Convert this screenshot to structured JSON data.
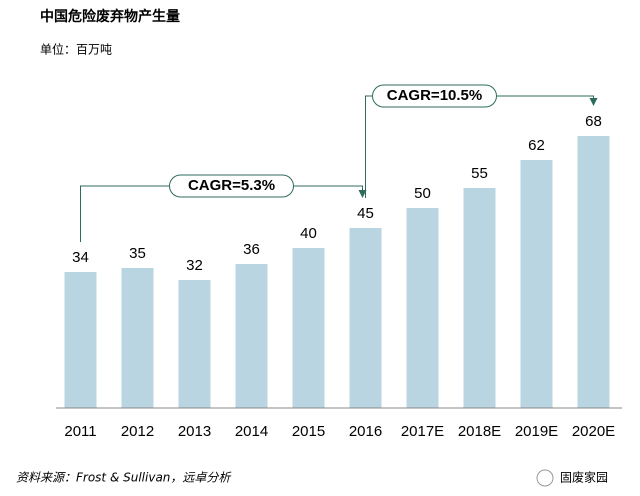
{
  "chart_data": {
    "type": "bar",
    "title": "中国危险废弃物产生量",
    "subtitle": "单位：百万吨",
    "categories": [
      "2011",
      "2012",
      "2013",
      "2014",
      "2015",
      "2016",
      "2017E",
      "2018E",
      "2019E",
      "2020E"
    ],
    "values": [
      34,
      35,
      32,
      36,
      40,
      45,
      50,
      55,
      62,
      68
    ],
    "color": "#b8d5e1",
    "ylim": [
      0,
      75
    ],
    "annotations": [
      "CAGR=5.3%",
      "CAGR=10.5%"
    ],
    "source": "资料来源：Frost & Sullivan，远卓分析",
    "watermark": "固废家园"
  }
}
